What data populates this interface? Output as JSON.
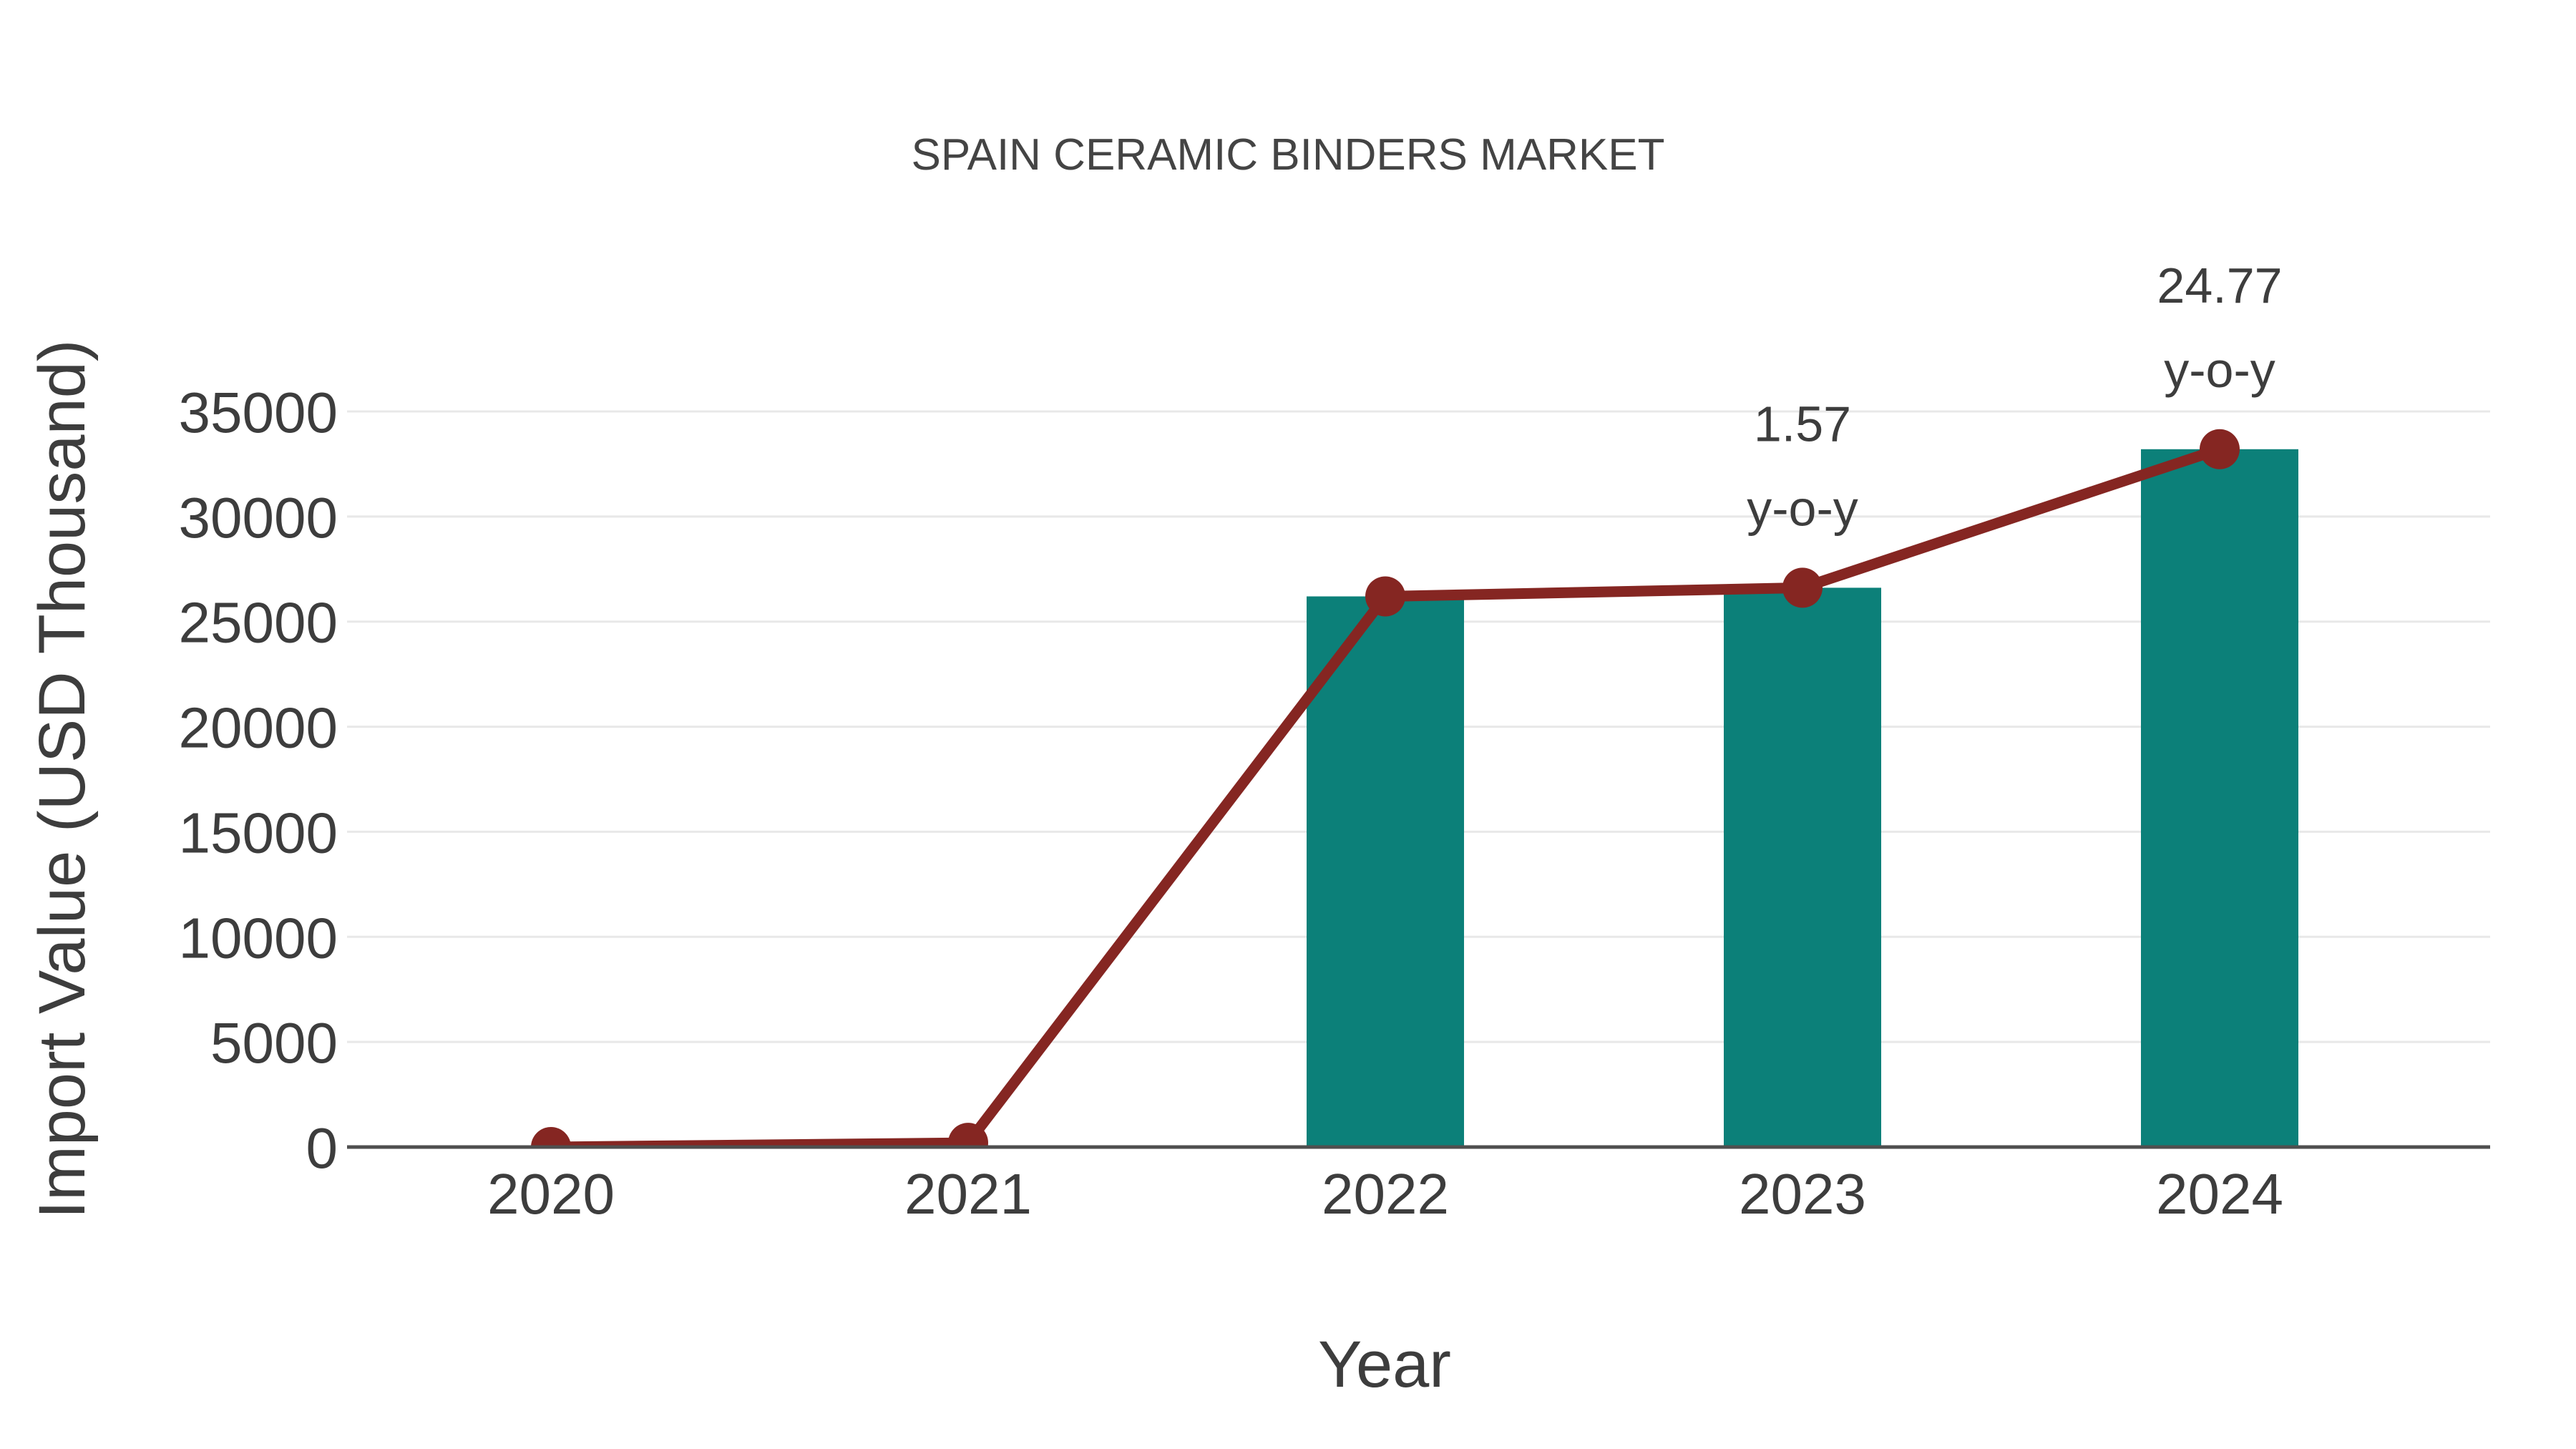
{
  "chart_data": {
    "type": "bar",
    "title": "SPAIN CERAMIC BINDERS MARKET",
    "xlabel": "Year",
    "ylabel": "Import Value (USD Thousand)",
    "categories": [
      "2020",
      "2021",
      "2022",
      "2023",
      "2024"
    ],
    "series": [
      {
        "name": "Import Value bars",
        "type": "bar",
        "values": [
          null,
          null,
          26200,
          26611,
          33203
        ],
        "color": "#0c8079"
      },
      {
        "name": "Import Value trend line",
        "type": "line",
        "values": [
          0,
          200,
          26200,
          26611,
          33203
        ],
        "color": "#852622"
      }
    ],
    "annotations": [
      {
        "category": "2023",
        "lines": [
          "1.57",
          "y-o-y"
        ]
      },
      {
        "category": "2024",
        "lines": [
          "24.77",
          "y-o-y"
        ]
      }
    ],
    "ylim": [
      0,
      35000
    ],
    "yticks": [
      0,
      5000,
      10000,
      15000,
      20000,
      25000,
      30000,
      35000
    ],
    "grid": true,
    "legend": "none",
    "colors": {
      "background": "#ffffff",
      "text": "#3d3d3d",
      "grid": "#e8e8e8",
      "axis_line": "#4f4f4f",
      "bar": "#0c8079",
      "line": "#852622"
    }
  }
}
